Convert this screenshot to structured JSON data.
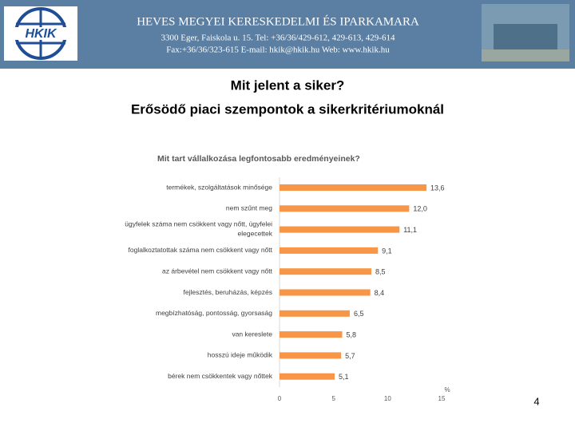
{
  "header": {
    "org": "HEVES MEGYEI KERESKEDELMI ÉS IPARKAMARA",
    "address": "3300 Eger, Faiskola u. 15.   Tel: +36/36/429-612, 429-613, 429-614",
    "contact": "Fax:+36/36/323-615   E-mail: hkik@hkik.hu   Web: www.hkik.hu",
    "logo": "HKIK"
  },
  "slide": {
    "title": "Mit jelent a siker?",
    "subtitle": "Erősödő piaci szempontok a sikerkritériumoknál",
    "page": "4"
  },
  "chart_data": {
    "type": "barh",
    "title": "Mit tart vállalkozása legfontosabb eredményeinek?",
    "categories": [
      "termékek, szolgáltatások minősége",
      "nem szűnt meg",
      "ügyfelek száma nem csökkent vagy nőtt, ügyfelei\nelegecettek",
      "foglalkoztatottak száma nem csökkent vagy nőtt",
      "az árbevétel nem csökkent vagy nőtt",
      "fejlesztés, beruházás, képzés",
      "megbízhatóság, pontosság, gyorsaság",
      "van kereslete",
      "hosszú ideje működik",
      "bérek nem csökkentek vagy nőttek"
    ],
    "values": [
      13.6,
      12.0,
      11.1,
      9.1,
      8.5,
      8.4,
      6.5,
      5.8,
      5.7,
      5.1
    ],
    "value_labels": [
      "13,6",
      "12,0",
      "11,1",
      "9,1",
      "8,5",
      "8,4",
      "6,5",
      "5,8",
      "5,7",
      "5,1"
    ],
    "color": "#f79646",
    "xlim": [
      0,
      15
    ],
    "xticks": [
      0,
      5,
      10,
      15
    ],
    "xlabel": "%"
  }
}
